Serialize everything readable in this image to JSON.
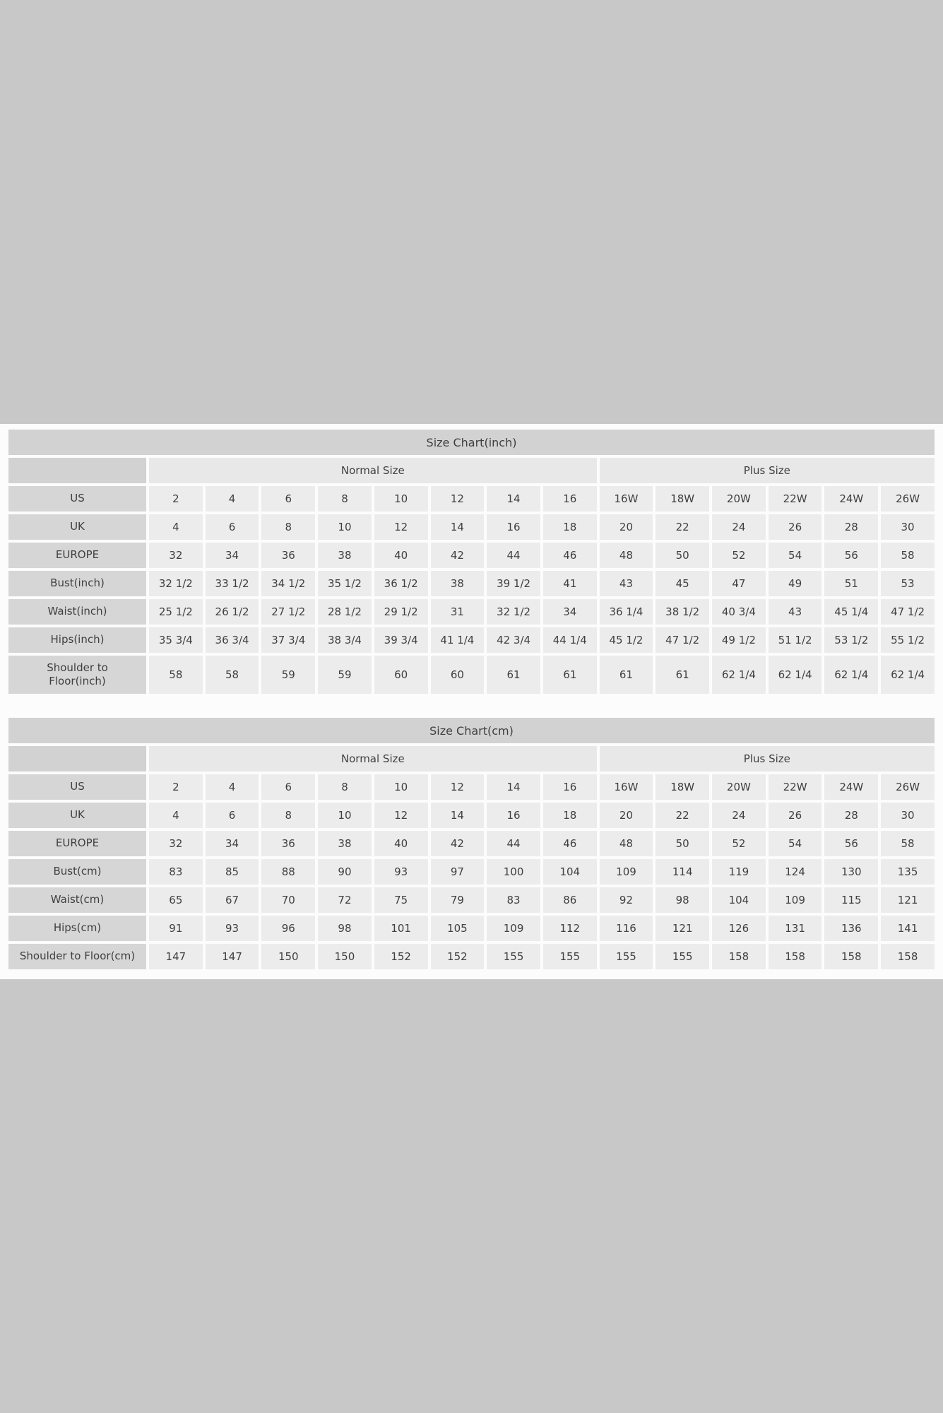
{
  "page": {
    "background_color": "#c8c8c8",
    "panel_color": "#fcfcfc"
  },
  "colors": {
    "title_bar": "#d2d2d2",
    "corner_cell": "#d2d2d2",
    "row_label_cell": "#d6d6d6",
    "group_header_cell": "#e8e8e8",
    "data_cell": "#ececec",
    "text": "#3f3f3f"
  },
  "tables": [
    {
      "title": "Size Chart(inch)",
      "corner_label": "",
      "group_headers": [
        {
          "label": "Normal Size",
          "span": 8
        },
        {
          "label": "Plus Size",
          "span": 6
        }
      ],
      "rows": [
        {
          "label": "US",
          "values": [
            "2",
            "4",
            "6",
            "8",
            "10",
            "12",
            "14",
            "16",
            "16W",
            "18W",
            "20W",
            "22W",
            "24W",
            "26W"
          ]
        },
        {
          "label": "UK",
          "values": [
            "4",
            "6",
            "8",
            "10",
            "12",
            "14",
            "16",
            "18",
            "20",
            "22",
            "24",
            "26",
            "28",
            "30"
          ]
        },
        {
          "label": "EUROPE",
          "values": [
            "32",
            "34",
            "36",
            "38",
            "40",
            "42",
            "44",
            "46",
            "48",
            "50",
            "52",
            "54",
            "56",
            "58"
          ]
        },
        {
          "label": "Bust(inch)",
          "values": [
            "32 1/2",
            "33 1/2",
            "34 1/2",
            "35 1/2",
            "36 1/2",
            "38",
            "39 1/2",
            "41",
            "43",
            "45",
            "47",
            "49",
            "51",
            "53"
          ]
        },
        {
          "label": "Waist(inch)",
          "values": [
            "25 1/2",
            "26 1/2",
            "27 1/2",
            "28 1/2",
            "29 1/2",
            "31",
            "32 1/2",
            "34",
            "36 1/4",
            "38 1/2",
            "40 3/4",
            "43",
            "45 1/4",
            "47 1/2"
          ]
        },
        {
          "label": "Hips(inch)",
          "values": [
            "35 3/4",
            "36 3/4",
            "37 3/4",
            "38 3/4",
            "39 3/4",
            "41 1/4",
            "42 3/4",
            "44 1/4",
            "45 1/2",
            "47 1/2",
            "49 1/2",
            "51 1/2",
            "53 1/2",
            "55 1/2"
          ]
        },
        {
          "label": "Shoulder to\nFloor(inch)",
          "values": [
            "58",
            "58",
            "59",
            "59",
            "60",
            "60",
            "61",
            "61",
            "61",
            "61",
            "62 1/4",
            "62 1/4",
            "62 1/4",
            "62 1/4"
          ]
        }
      ]
    },
    {
      "title": "Size Chart(cm)",
      "corner_label": "",
      "group_headers": [
        {
          "label": "Normal Size",
          "span": 8
        },
        {
          "label": "Plus Size",
          "span": 6
        }
      ],
      "rows": [
        {
          "label": "US",
          "values": [
            "2",
            "4",
            "6",
            "8",
            "10",
            "12",
            "14",
            "16",
            "16W",
            "18W",
            "20W",
            "22W",
            "24W",
            "26W"
          ]
        },
        {
          "label": "UK",
          "values": [
            "4",
            "6",
            "8",
            "10",
            "12",
            "14",
            "16",
            "18",
            "20",
            "22",
            "24",
            "26",
            "28",
            "30"
          ]
        },
        {
          "label": "EUROPE",
          "values": [
            "32",
            "34",
            "36",
            "38",
            "40",
            "42",
            "44",
            "46",
            "48",
            "50",
            "52",
            "54",
            "56",
            "58"
          ]
        },
        {
          "label": "Bust(cm)",
          "values": [
            "83",
            "85",
            "88",
            "90",
            "93",
            "97",
            "100",
            "104",
            "109",
            "114",
            "119",
            "124",
            "130",
            "135"
          ]
        },
        {
          "label": "Waist(cm)",
          "values": [
            "65",
            "67",
            "70",
            "72",
            "75",
            "79",
            "83",
            "86",
            "92",
            "98",
            "104",
            "109",
            "115",
            "121"
          ]
        },
        {
          "label": "Hips(cm)",
          "values": [
            "91",
            "93",
            "96",
            "98",
            "101",
            "105",
            "109",
            "112",
            "116",
            "121",
            "126",
            "131",
            "136",
            "141"
          ]
        },
        {
          "label": "Shoulder to Floor(cm)",
          "values": [
            "147",
            "147",
            "150",
            "150",
            "152",
            "152",
            "155",
            "155",
            "155",
            "155",
            "158",
            "158",
            "158",
            "158"
          ]
        }
      ]
    }
  ]
}
